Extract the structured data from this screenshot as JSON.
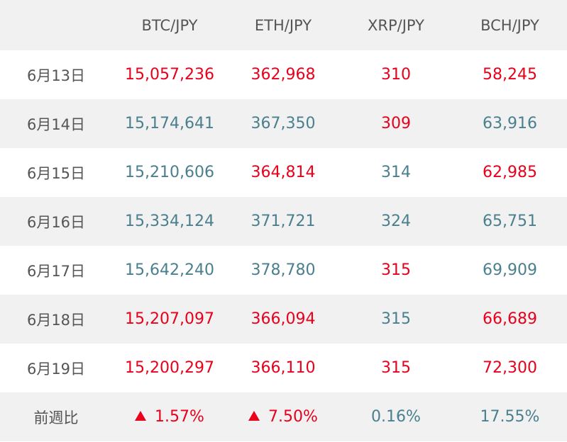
{
  "header": {
    "corner": "",
    "columns": [
      "BTC/JPY",
      "ETH/JPY",
      "XRP/JPY",
      "BCH/JPY"
    ]
  },
  "rows": [
    {
      "date": "6月13日",
      "btc": "15,057,236",
      "eth": "362,968",
      "xrp": "310",
      "bch": "58,245",
      "btc_dir": "up",
      "eth_dir": "up",
      "xrp_dir": "up",
      "bch_dir": "up"
    },
    {
      "date": "6月14日",
      "btc": "15,174,641",
      "eth": "367,350",
      "xrp": "309",
      "bch": "63,916",
      "btc_dir": "down",
      "eth_dir": "down",
      "xrp_dir": "up",
      "bch_dir": "down"
    },
    {
      "date": "6月15日",
      "btc": "15,210,606",
      "eth": "364,814",
      "xrp": "314",
      "bch": "62,985",
      "btc_dir": "down",
      "eth_dir": "up",
      "xrp_dir": "down",
      "bch_dir": "up"
    },
    {
      "date": "6月16日",
      "btc": "15,334,124",
      "eth": "371,721",
      "xrp": "324",
      "bch": "65,751",
      "btc_dir": "down",
      "eth_dir": "down",
      "xrp_dir": "down",
      "bch_dir": "down"
    },
    {
      "date": "6月17日",
      "btc": "15,642,240",
      "eth": "378,780",
      "xrp": "315",
      "bch": "69,909",
      "btc_dir": "down",
      "eth_dir": "down",
      "xrp_dir": "up",
      "bch_dir": "down"
    },
    {
      "date": "6月18日",
      "btc": "15,207,097",
      "eth": "366,094",
      "xrp": "315",
      "bch": "66,689",
      "btc_dir": "up",
      "eth_dir": "up",
      "xrp_dir": "down",
      "bch_dir": "up"
    },
    {
      "date": "6月19日",
      "btc": "15,200,297",
      "eth": "366,110",
      "xrp": "315",
      "bch": "72,300",
      "btc_dir": "up",
      "eth_dir": "up",
      "xrp_dir": "up",
      "bch_dir": "up"
    }
  ],
  "summary": {
    "label": "前週比",
    "btc": "1.57%",
    "eth": "7.50%",
    "xrp": "0.16%",
    "bch": "17.55%",
    "btc_dir": "up",
    "eth_dir": "up",
    "xrp_dir": "down",
    "bch_dir": "down"
  },
  "colors": {
    "up": "#e8001c",
    "down": "#4a7f8e",
    "label": "#555555",
    "row_shade": "#f1f1f1"
  },
  "icons": {
    "up_marker": "triangle-up-icon"
  }
}
